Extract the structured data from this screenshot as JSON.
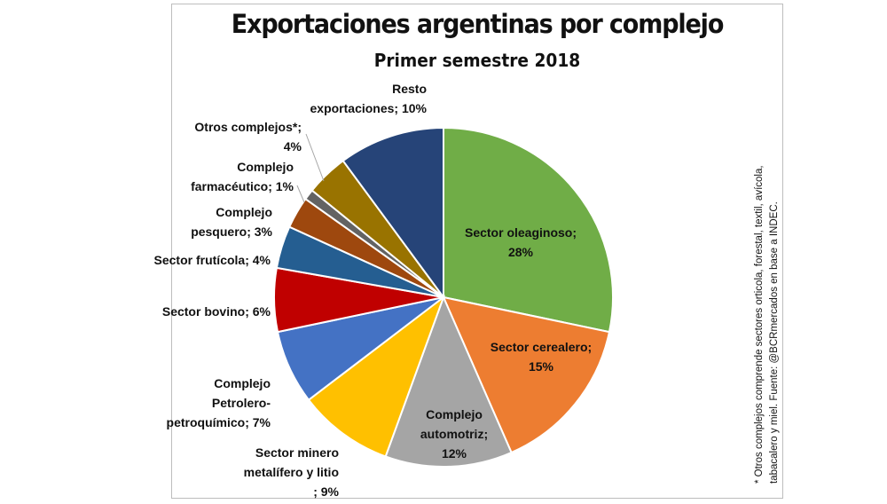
{
  "chart_data": {
    "type": "pie",
    "title": "Exportaciones argentinas por complejo",
    "subtitle": "Primer semestre 2018",
    "slices": [
      {
        "label": "Sector oleaginoso; 28%",
        "value": 28,
        "color": "#70ad47",
        "lines": [
          "Sector oleaginoso;",
          "28%"
        ]
      },
      {
        "label": "Sector cerealero; 15%",
        "value": 15,
        "color": "#ed7d31",
        "lines": [
          "Sector cerealero;",
          "15%"
        ]
      },
      {
        "label": "Complejo automotriz; 12%",
        "value": 12,
        "color": "#a5a5a5",
        "lines": [
          "Complejo",
          "automotriz;",
          "12%"
        ]
      },
      {
        "label": "Sector minero metalífero y litio ; 9%",
        "value": 9,
        "color": "#ffc000",
        "lines": [
          "Sector minero",
          "metalífero y litio",
          "; 9%"
        ]
      },
      {
        "label": "Complejo Petrolero-petroquímico; 7%",
        "value": 7,
        "color": "#4472c4",
        "lines": [
          "Complejo",
          "Petrolero-",
          "petroquímico; 7%"
        ]
      },
      {
        "label": "Sector bovino; 6%",
        "value": 6,
        "color": "#c00000",
        "lines": [
          "Sector bovino; 6%"
        ]
      },
      {
        "label": "Sector frutícola; 4%",
        "value": 4,
        "color": "#255e91",
        "lines": [
          "Sector frutícola; 4%"
        ]
      },
      {
        "label": "Complejo pesquero; 3%",
        "value": 3,
        "color": "#9e480e",
        "lines": [
          "Complejo",
          "pesquero; 3%"
        ]
      },
      {
        "label": "Complejo farmacéutico; 1%",
        "value": 1,
        "color": "#636363",
        "lines": [
          "Complejo",
          "farmacéutico; 1%"
        ]
      },
      {
        "label": "Otros complejos*; 4%",
        "value": 4,
        "color": "#997300",
        "lines": [
          "Otros complejos*;",
          "4%"
        ]
      },
      {
        "label": "Resto exportaciones; 10%",
        "value": 10,
        "color": "#264478",
        "lines": [
          "Resto",
          "exportaciones; 10%"
        ]
      }
    ]
  },
  "footnote": {
    "line1": "* Otros complejos comprende sectores orticola, forestal, textil, avícola,",
    "line2": "tabacalero y miel. Fuente: @BCRmercados en base a INDEC."
  }
}
